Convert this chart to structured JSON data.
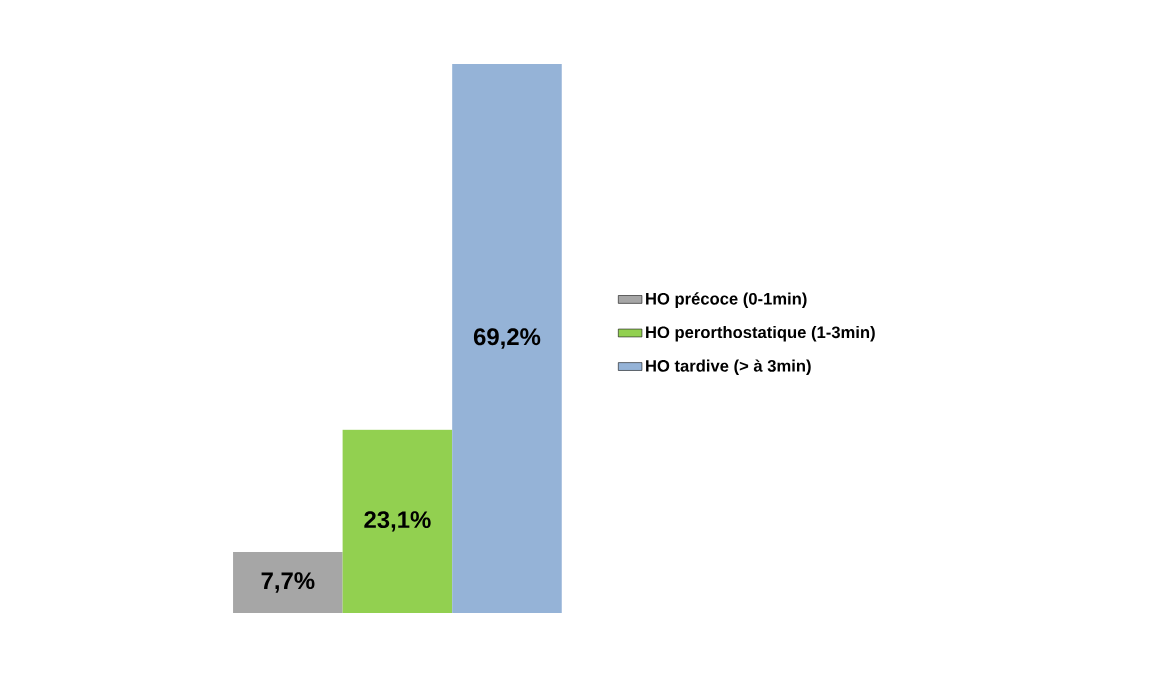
{
  "chart_data": {
    "type": "bar",
    "categories": [
      null
    ],
    "legend": "right",
    "series": [
      {
        "name": "HO précoce (0-1min)",
        "color": "#a6a6a6",
        "values": [
          7.7
        ],
        "value_labels": [
          "7,7%"
        ]
      },
      {
        "name": "HO perorthostatique  (1-3min)",
        "color": "#92d050",
        "values": [
          23.1
        ],
        "value_labels": [
          "23,1%"
        ]
      },
      {
        "name": "HO tardive (> à 3min)",
        "color": "#95b3d7",
        "values": [
          69.2
        ],
        "value_labels": [
          "69,2%"
        ]
      }
    ]
  }
}
